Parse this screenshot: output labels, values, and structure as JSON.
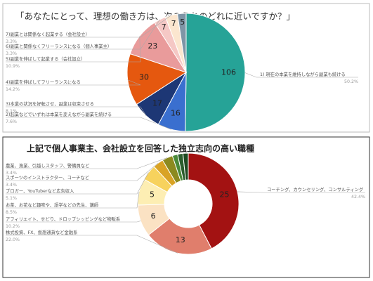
{
  "chart_data": [
    {
      "type": "pie",
      "title": "「あなたにとって、理想の働き方は、次のうちのどれに近いですか？」",
      "categories": [
        "1) 現在の本業を維持しながら副業も続ける",
        "2)起業などでいずれは本業を変えながら副業を続ける",
        "3)本業の状況を好転させ、副業は収束させる",
        "4)副業を伸ばしてフリーランスになる",
        "5)副業を伸ばして起業する（会社設立）",
        "6)副業と関係なくフリーランスになる（個人事業主）",
        "7)副業とは関係なく起業する（会社設立）",
        null
      ],
      "values": [
        106,
        16,
        17,
        30,
        23,
        7,
        7,
        5
      ],
      "shares": [
        "50.2%",
        "7.6%",
        "8.1%",
        "14.2%",
        "10.9%",
        "3.3%",
        "3.3%",
        null
      ],
      "colors": [
        "#26a397",
        "#3a6fcf",
        "#1d3775",
        "#e5580f",
        "#e99b9b",
        "#f5c8c5",
        "#fbe6cf",
        "#7e95a6"
      ]
    },
    {
      "type": "donut",
      "title": "上記で個人事業主、会社設立を回答した独立志向の高い職種",
      "categories": [
        "コーチング、カウンセリング、コンサルティング",
        "株式投資、FX、仮想通貨など金融系",
        "アフィリエイト、せどり、ドロップシッピングなど物販系",
        "お茶、お花など趣味や、語学などの先生、講師",
        "ブロガー、YouTuberなど広告収入",
        "スポーツのインストラクター、コーチなど",
        "農業、漁業、引越しスタッフ、警備員など",
        null,
        null,
        null
      ],
      "values": [
        25,
        13,
        6,
        5,
        3,
        2,
        2,
        1,
        1,
        1
      ],
      "shares": [
        "42.4%",
        "22.0%",
        "10.2%",
        "8.5%",
        "5.1%",
        "3.4%",
        "3.4%",
        null,
        null,
        null
      ],
      "colors": [
        "#a31212",
        "#e07e6c",
        "#fbe2c3",
        "#fdeeb3",
        "#f7d25d",
        "#d9a325",
        "#8c8a1f",
        "#4a8a3a",
        "#2b5e2d",
        "#1f4a22"
      ]
    }
  ]
}
